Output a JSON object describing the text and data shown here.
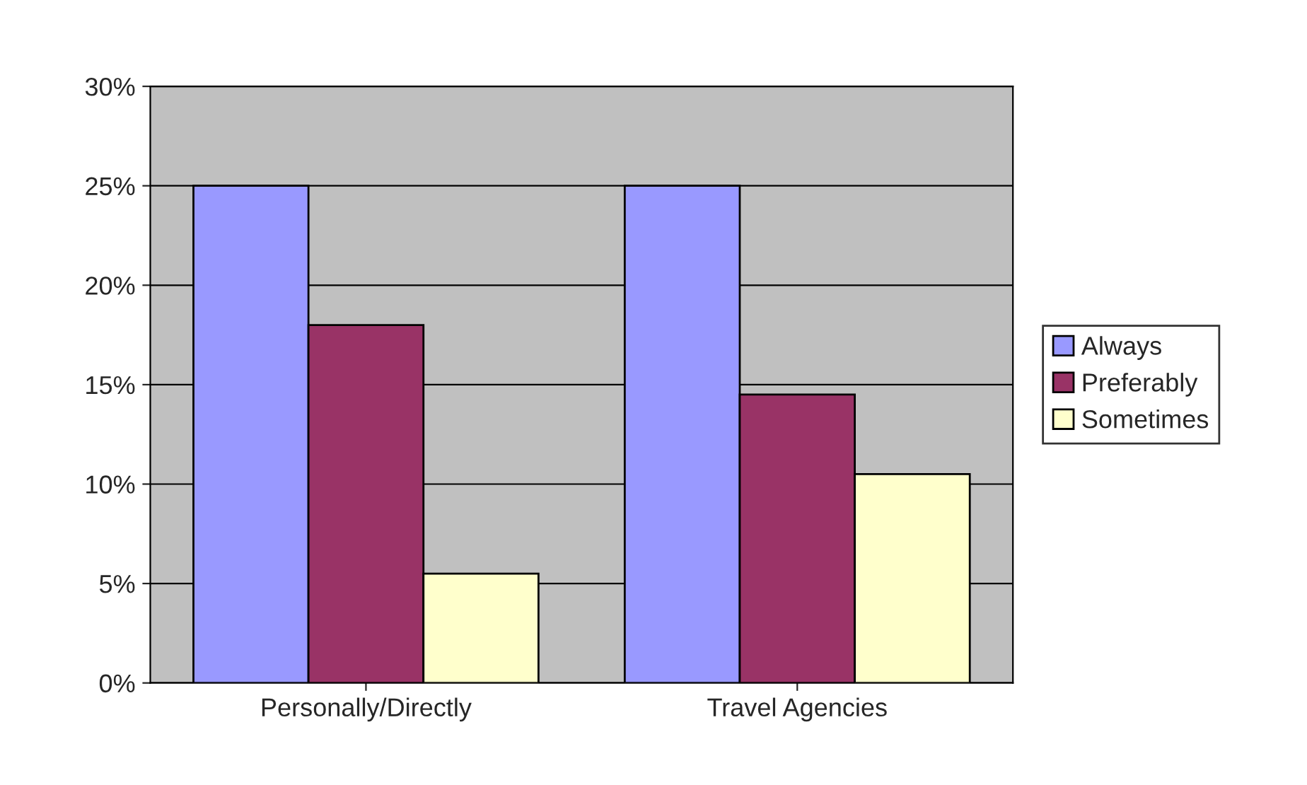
{
  "chart_data": {
    "type": "bar",
    "categories": [
      "Personally/Directly",
      "Travel Agencies"
    ],
    "series": [
      {
        "name": "Always",
        "color": "#9999ff",
        "values": [
          25,
          25
        ]
      },
      {
        "name": "Preferably",
        "color": "#993366",
        "values": [
          18,
          14.5
        ]
      },
      {
        "name": "Sometimes",
        "color": "#ffffcc",
        "values": [
          5.5,
          10.5
        ]
      }
    ],
    "ylim": [
      0,
      30
    ],
    "yticks": [
      {
        "value": 0,
        "label": "0%"
      },
      {
        "value": 5,
        "label": "5%"
      },
      {
        "value": 10,
        "label": "10%"
      },
      {
        "value": 15,
        "label": "15%"
      },
      {
        "value": 20,
        "label": "20%"
      },
      {
        "value": 25,
        "label": "25%"
      },
      {
        "value": 30,
        "label": "30%"
      }
    ],
    "grid": "y",
    "legend": "right"
  }
}
